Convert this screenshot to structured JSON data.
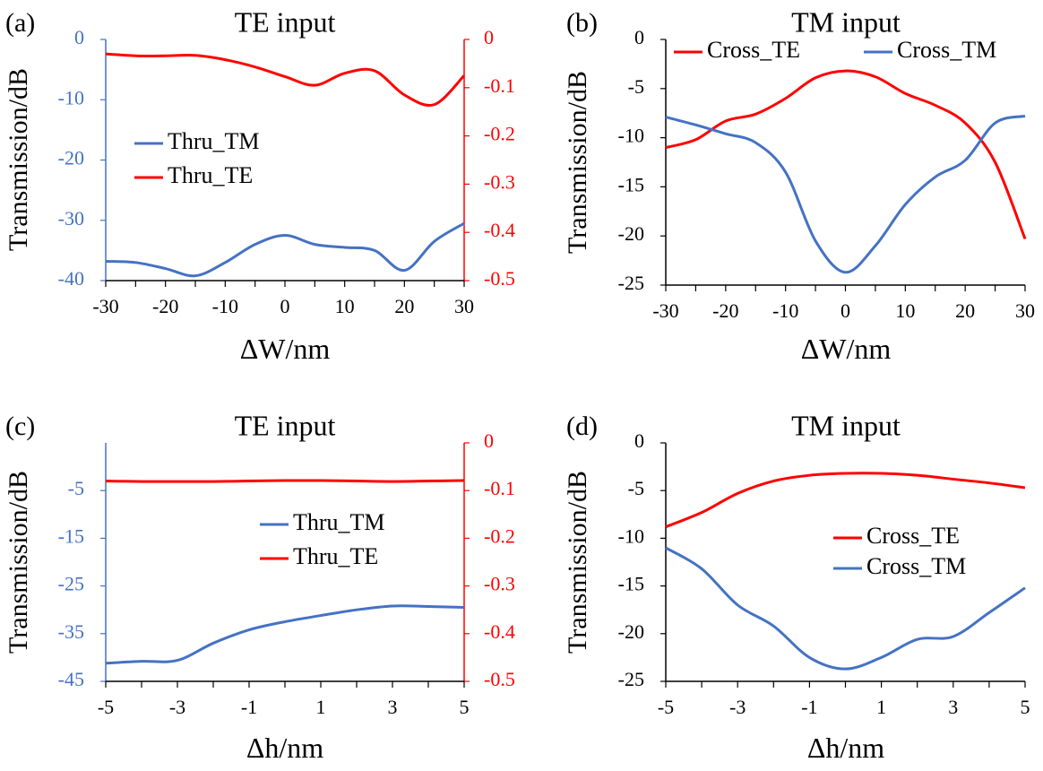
{
  "chart_data": [
    {
      "type": "line",
      "panel_label": "(a)",
      "title": "TE input",
      "xlabel": "ΔW/nm",
      "ylabel": "Transmission/dB",
      "xlim": [
        -30,
        30
      ],
      "xticks": [
        "-30",
        "-20",
        "-10",
        "0",
        "10",
        "20",
        "30"
      ],
      "ylim_left": [
        -40,
        0
      ],
      "yticks_left": [
        "0",
        "-10",
        "-20",
        "-30",
        "-40"
      ],
      "ylim_right": [
        -0.5,
        0
      ],
      "yticks_right": [
        "0",
        "-0.1",
        "-0.2",
        "-0.3",
        "-0.4",
        "-0.5"
      ],
      "legend_position": "center-left",
      "series": [
        {
          "name": "Thru_TM",
          "color": "#4472C4",
          "axis": "left",
          "x": [
            -30,
            -25,
            -20,
            -15,
            -10,
            -5,
            0,
            5,
            10,
            15,
            20,
            25,
            30
          ],
          "y": [
            -36.8,
            -37,
            -38,
            -39.2,
            -37,
            -34,
            -32.5,
            -34,
            -34.5,
            -35,
            -38.3,
            -33.5,
            -30.5
          ]
        },
        {
          "name": "Thru_TE",
          "color": "#FF0000",
          "axis": "right",
          "x": [
            -30,
            -25,
            -20,
            -15,
            -10,
            -5,
            0,
            5,
            10,
            15,
            20,
            25,
            30
          ],
          "y": [
            -0.03,
            -0.034,
            -0.034,
            -0.033,
            -0.042,
            -0.057,
            -0.077,
            -0.095,
            -0.07,
            -0.065,
            -0.115,
            -0.135,
            -0.075
          ]
        }
      ]
    },
    {
      "type": "line",
      "panel_label": "(b)",
      "title": "TM input",
      "xlabel": "ΔW/nm",
      "ylabel": "Transmission/dB",
      "xlim": [
        -30,
        30
      ],
      "xticks": [
        "-30",
        "-20",
        "-10",
        "0",
        "10",
        "20",
        "30"
      ],
      "ylim_left": [
        -25,
        0
      ],
      "yticks_left": [
        "0",
        "-5",
        "-10",
        "-15",
        "-20",
        "-25"
      ],
      "legend_position": "top",
      "series": [
        {
          "name": "Cross_TE",
          "color": "#FF0000",
          "axis": "left",
          "x": [
            -30,
            -25,
            -20,
            -15,
            -10,
            -5,
            0,
            5,
            10,
            15,
            20,
            25,
            30
          ],
          "y": [
            -11,
            -10.2,
            -8.3,
            -7.6,
            -6,
            -3.9,
            -3.2,
            -3.8,
            -5.5,
            -6.7,
            -8.5,
            -12.5,
            -20.3
          ]
        },
        {
          "name": "Cross_TM",
          "color": "#4472C4",
          "axis": "left",
          "x": [
            -30,
            -25,
            -20,
            -15,
            -10,
            -5,
            0,
            5,
            10,
            15,
            20,
            25,
            30
          ],
          "y": [
            -7.9,
            -8.7,
            -9.6,
            -10.5,
            -13.5,
            -20.5,
            -23.7,
            -21,
            -16.8,
            -14,
            -12.3,
            -8.5,
            -7.8
          ]
        }
      ]
    },
    {
      "type": "line",
      "panel_label": "(c)",
      "title": "TE input",
      "xlabel": "Δh/nm",
      "ylabel": "Transmission/dB",
      "xlim": [
        -5,
        5
      ],
      "xticks": [
        "-5",
        "-3",
        "-1",
        "1",
        "3",
        "5"
      ],
      "ylim_left": [
        -45,
        5
      ],
      "yticks_left": [
        "-5",
        "-15",
        "-25",
        "-35",
        "-45"
      ],
      "ylim_right": [
        -0.5,
        0
      ],
      "yticks_right": [
        "0",
        "-0.1",
        "-0.2",
        "-0.3",
        "-0.4",
        "-0.5"
      ],
      "legend_position": "center-right",
      "series": [
        {
          "name": "Thru_TM",
          "color": "#4472C4",
          "axis": "left",
          "x": [
            -5,
            -4,
            -3,
            -2,
            -1,
            0,
            1,
            2,
            3,
            4,
            5
          ],
          "y": [
            -41.2,
            -40.8,
            -40.6,
            -37,
            -34.2,
            -32.5,
            -31.2,
            -30,
            -29.2,
            -29.3,
            -29.5
          ]
        },
        {
          "name": "Thru_TE",
          "color": "#FF0000",
          "axis": "right",
          "x": [
            -5,
            -4,
            -3,
            -2,
            -1,
            0,
            1,
            2,
            3,
            4,
            5
          ],
          "y": [
            -0.08,
            -0.081,
            -0.081,
            -0.081,
            -0.08,
            -0.079,
            -0.079,
            -0.08,
            -0.081,
            -0.08,
            -0.079
          ]
        }
      ]
    },
    {
      "type": "line",
      "panel_label": "(d)",
      "title": "TM input",
      "xlabel": "Δh/nm",
      "ylabel": "Transmission/dB",
      "xlim": [
        -5,
        5
      ],
      "xticks": [
        "-5",
        "-3",
        "-1",
        "1",
        "3",
        "5"
      ],
      "ylim_left": [
        -25,
        0
      ],
      "yticks_left": [
        "0",
        "-5",
        "-10",
        "-15",
        "-20",
        "-25"
      ],
      "legend_position": "center-right",
      "series": [
        {
          "name": "Cross_TE",
          "color": "#FF0000",
          "axis": "left",
          "x": [
            -5,
            -4,
            -3,
            -2,
            -1,
            0,
            1,
            2,
            3,
            4,
            5
          ],
          "y": [
            -8.8,
            -7.3,
            -5.3,
            -4,
            -3.4,
            -3.2,
            -3.2,
            -3.4,
            -3.8,
            -4.2,
            -4.7
          ]
        },
        {
          "name": "Cross_TM",
          "color": "#4472C4",
          "axis": "left",
          "x": [
            -5,
            -4,
            -3,
            -2,
            -1,
            0,
            1,
            2,
            3,
            4,
            5
          ],
          "y": [
            -11,
            -13.2,
            -17,
            -19.2,
            -22.5,
            -23.7,
            -22.5,
            -20.6,
            -20.3,
            -17.8,
            -15.2
          ]
        }
      ]
    }
  ]
}
